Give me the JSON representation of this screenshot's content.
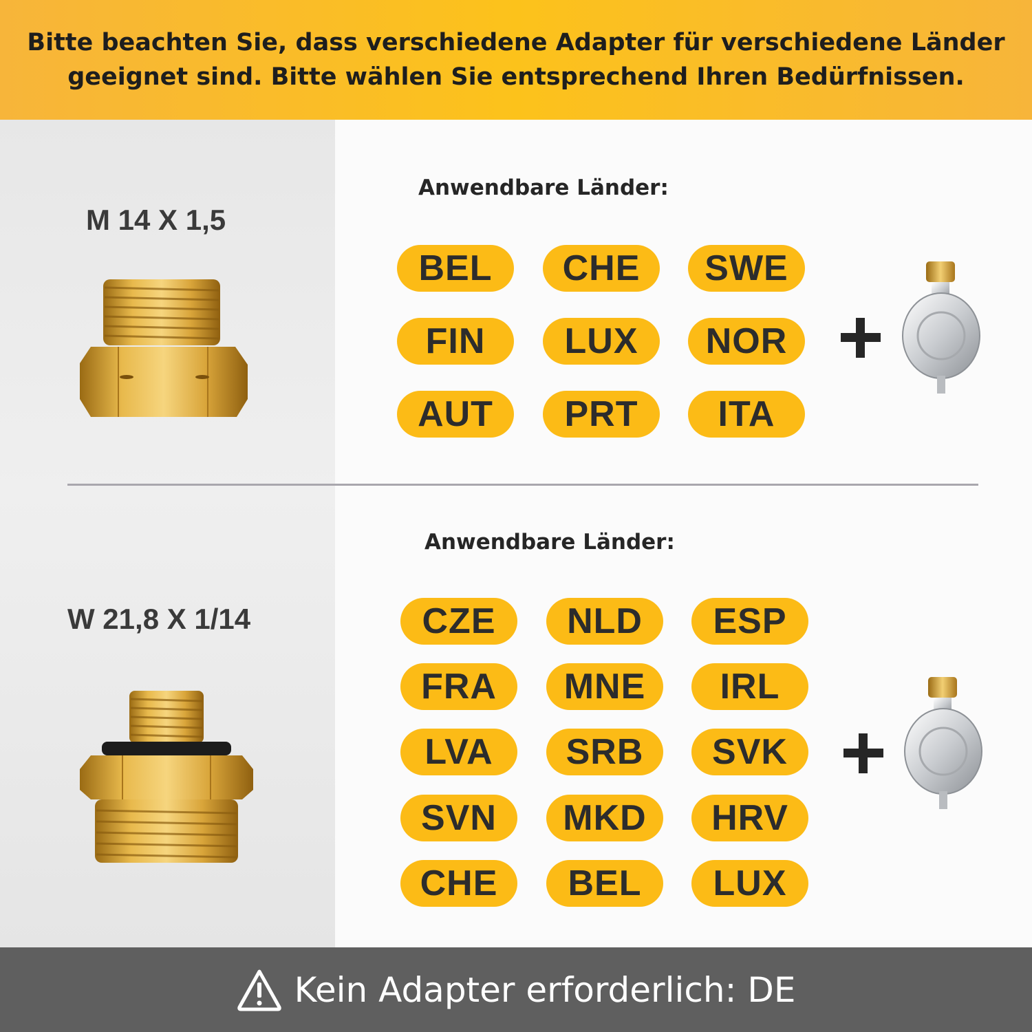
{
  "banner": {
    "line1": "Bitte beachten Sie, dass verschiedene Adapter für verschiedene Länder",
    "line2": "geeignet sind. Bitte wählen Sie entsprechend Ihren Bedürfnissen."
  },
  "section1": {
    "spec": "M 14 X 1,5",
    "title": "Anwendbare Länder:",
    "countries": [
      "BEL",
      "CHE",
      "SWE",
      "FIN",
      "LUX",
      "NOR",
      "AUT",
      "PRT",
      "ITA"
    ]
  },
  "section2": {
    "spec": "W 21,8 X 1/14",
    "title": "Anwendbare Länder:",
    "countries": [
      "CZE",
      "NLD",
      "ESP",
      "FRA",
      "MNE",
      "IRL",
      "LVA",
      "SRB",
      "SVK",
      "SVN",
      "MKD",
      "HRV",
      "CHE",
      "BEL",
      "LUX"
    ]
  },
  "footer": {
    "text": "Kein Adapter erforderlich: DE",
    "icon": "warning-icon"
  },
  "colors": {
    "banner": "#fcc21b",
    "pill": "#fcbb16",
    "footer": "#5f5f5f",
    "brass": "#d9a53a"
  }
}
